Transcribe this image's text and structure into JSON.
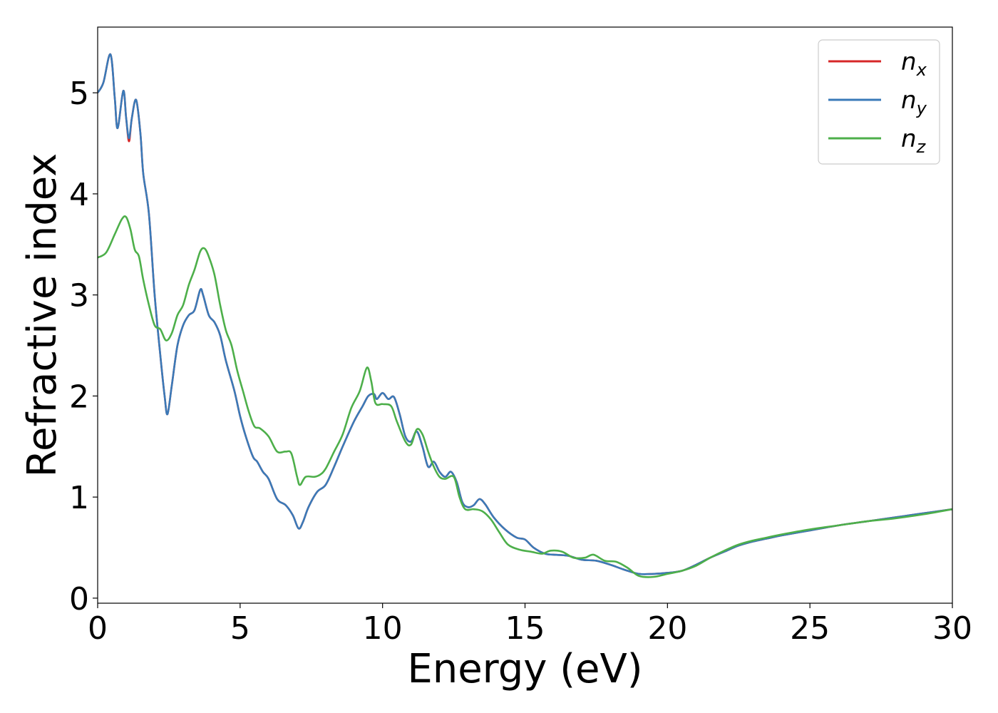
{
  "chart_data": {
    "type": "line",
    "xlabel": "Energy (eV)",
    "ylabel": "Refractive index",
    "xlim": [
      0,
      30
    ],
    "ylim": [
      -0.05,
      5.65
    ],
    "xticks": [
      0,
      5,
      10,
      15,
      20,
      25,
      30
    ],
    "yticks": [
      0,
      1,
      2,
      3,
      4,
      5
    ],
    "grid": false,
    "legend_position": "top-right",
    "series": [
      {
        "name": "n_x",
        "base": "n",
        "sub": "x",
        "color": "#d62728",
        "points": [
          [
            0,
            5.0
          ],
          [
            0.2,
            5.1
          ],
          [
            0.45,
            5.38
          ],
          [
            0.6,
            4.95
          ],
          [
            0.7,
            4.65
          ],
          [
            0.9,
            5.02
          ],
          [
            1.0,
            4.75
          ],
          [
            1.1,
            4.52
          ],
          [
            1.2,
            4.75
          ],
          [
            1.35,
            4.93
          ],
          [
            1.5,
            4.6
          ],
          [
            1.6,
            4.2
          ],
          [
            1.8,
            3.8
          ],
          [
            2.0,
            3.0
          ],
          [
            2.2,
            2.4
          ],
          [
            2.35,
            2.0
          ],
          [
            2.45,
            1.82
          ],
          [
            2.6,
            2.1
          ],
          [
            2.8,
            2.5
          ],
          [
            3.0,
            2.7
          ],
          [
            3.2,
            2.8
          ],
          [
            3.4,
            2.85
          ],
          [
            3.6,
            3.05
          ],
          [
            3.7,
            3.0
          ],
          [
            3.9,
            2.8
          ],
          [
            4.1,
            2.73
          ],
          [
            4.3,
            2.6
          ],
          [
            4.5,
            2.35
          ],
          [
            4.8,
            2.05
          ],
          [
            5.0,
            1.8
          ],
          [
            5.2,
            1.6
          ],
          [
            5.45,
            1.4
          ],
          [
            5.6,
            1.35
          ],
          [
            5.8,
            1.25
          ],
          [
            6.0,
            1.18
          ],
          [
            6.3,
            0.98
          ],
          [
            6.6,
            0.92
          ],
          [
            6.85,
            0.82
          ],
          [
            7.05,
            0.69
          ],
          [
            7.2,
            0.75
          ],
          [
            7.4,
            0.9
          ],
          [
            7.7,
            1.05
          ],
          [
            8.0,
            1.12
          ],
          [
            8.3,
            1.3
          ],
          [
            8.6,
            1.5
          ],
          [
            9.0,
            1.75
          ],
          [
            9.3,
            1.9
          ],
          [
            9.5,
            2.0
          ],
          [
            9.7,
            2.02
          ],
          [
            9.8,
            1.97
          ],
          [
            10.0,
            2.03
          ],
          [
            10.2,
            1.97
          ],
          [
            10.4,
            1.99
          ],
          [
            10.6,
            1.82
          ],
          [
            10.8,
            1.6
          ],
          [
            11.0,
            1.55
          ],
          [
            11.2,
            1.65
          ],
          [
            11.4,
            1.5
          ],
          [
            11.6,
            1.3
          ],
          [
            11.8,
            1.35
          ],
          [
            12.0,
            1.25
          ],
          [
            12.2,
            1.2
          ],
          [
            12.4,
            1.25
          ],
          [
            12.6,
            1.15
          ],
          [
            12.8,
            0.95
          ],
          [
            13.0,
            0.9
          ],
          [
            13.2,
            0.92
          ],
          [
            13.4,
            0.98
          ],
          [
            13.6,
            0.93
          ],
          [
            13.9,
            0.8
          ],
          [
            14.3,
            0.68
          ],
          [
            14.7,
            0.6
          ],
          [
            15.0,
            0.58
          ],
          [
            15.3,
            0.5
          ],
          [
            15.7,
            0.44
          ],
          [
            16.0,
            0.43
          ],
          [
            16.5,
            0.42
          ],
          [
            17.0,
            0.38
          ],
          [
            17.5,
            0.37
          ],
          [
            18.0,
            0.33
          ],
          [
            18.5,
            0.28
          ],
          [
            19.0,
            0.24
          ],
          [
            19.5,
            0.24
          ],
          [
            20.0,
            0.25
          ],
          [
            20.5,
            0.27
          ],
          [
            21.0,
            0.33
          ],
          [
            21.5,
            0.4
          ],
          [
            22.0,
            0.46
          ],
          [
            22.5,
            0.52
          ],
          [
            23.0,
            0.56
          ],
          [
            23.5,
            0.59
          ],
          [
            24.0,
            0.62
          ],
          [
            25.0,
            0.67
          ],
          [
            26.0,
            0.72
          ],
          [
            27.0,
            0.76
          ],
          [
            28.0,
            0.8
          ],
          [
            29.0,
            0.84
          ],
          [
            30.0,
            0.88
          ]
        ]
      },
      {
        "name": "n_y",
        "base": "n",
        "sub": "y",
        "color": "#3a7ab8",
        "points": [
          [
            0,
            5.0
          ],
          [
            0.2,
            5.1
          ],
          [
            0.45,
            5.38
          ],
          [
            0.6,
            4.95
          ],
          [
            0.7,
            4.65
          ],
          [
            0.9,
            5.02
          ],
          [
            1.0,
            4.75
          ],
          [
            1.1,
            4.55
          ],
          [
            1.2,
            4.75
          ],
          [
            1.35,
            4.93
          ],
          [
            1.5,
            4.6
          ],
          [
            1.6,
            4.2
          ],
          [
            1.8,
            3.8
          ],
          [
            2.0,
            3.0
          ],
          [
            2.2,
            2.4
          ],
          [
            2.35,
            2.0
          ],
          [
            2.45,
            1.82
          ],
          [
            2.6,
            2.1
          ],
          [
            2.8,
            2.5
          ],
          [
            3.0,
            2.7
          ],
          [
            3.2,
            2.8
          ],
          [
            3.4,
            2.85
          ],
          [
            3.6,
            3.05
          ],
          [
            3.7,
            3.0
          ],
          [
            3.9,
            2.8
          ],
          [
            4.1,
            2.73
          ],
          [
            4.3,
            2.6
          ],
          [
            4.5,
            2.35
          ],
          [
            4.8,
            2.05
          ],
          [
            5.0,
            1.8
          ],
          [
            5.2,
            1.6
          ],
          [
            5.45,
            1.4
          ],
          [
            5.6,
            1.35
          ],
          [
            5.8,
            1.25
          ],
          [
            6.0,
            1.18
          ],
          [
            6.3,
            0.98
          ],
          [
            6.6,
            0.92
          ],
          [
            6.85,
            0.82
          ],
          [
            7.05,
            0.69
          ],
          [
            7.2,
            0.75
          ],
          [
            7.4,
            0.9
          ],
          [
            7.7,
            1.05
          ],
          [
            8.0,
            1.12
          ],
          [
            8.3,
            1.3
          ],
          [
            8.6,
            1.5
          ],
          [
            9.0,
            1.75
          ],
          [
            9.3,
            1.9
          ],
          [
            9.5,
            2.0
          ],
          [
            9.7,
            2.02
          ],
          [
            9.8,
            1.97
          ],
          [
            10.0,
            2.03
          ],
          [
            10.2,
            1.97
          ],
          [
            10.4,
            1.99
          ],
          [
            10.6,
            1.82
          ],
          [
            10.8,
            1.6
          ],
          [
            11.0,
            1.55
          ],
          [
            11.2,
            1.65
          ],
          [
            11.4,
            1.5
          ],
          [
            11.6,
            1.3
          ],
          [
            11.8,
            1.35
          ],
          [
            12.0,
            1.25
          ],
          [
            12.2,
            1.2
          ],
          [
            12.4,
            1.25
          ],
          [
            12.6,
            1.15
          ],
          [
            12.8,
            0.95
          ],
          [
            13.0,
            0.9
          ],
          [
            13.2,
            0.92
          ],
          [
            13.4,
            0.98
          ],
          [
            13.6,
            0.93
          ],
          [
            13.9,
            0.8
          ],
          [
            14.3,
            0.68
          ],
          [
            14.7,
            0.6
          ],
          [
            15.0,
            0.58
          ],
          [
            15.3,
            0.5
          ],
          [
            15.7,
            0.44
          ],
          [
            16.0,
            0.43
          ],
          [
            16.5,
            0.42
          ],
          [
            17.0,
            0.38
          ],
          [
            17.5,
            0.37
          ],
          [
            18.0,
            0.33
          ],
          [
            18.5,
            0.28
          ],
          [
            19.0,
            0.24
          ],
          [
            19.5,
            0.24
          ],
          [
            20.0,
            0.25
          ],
          [
            20.5,
            0.27
          ],
          [
            21.0,
            0.33
          ],
          [
            21.5,
            0.4
          ],
          [
            22.0,
            0.46
          ],
          [
            22.5,
            0.52
          ],
          [
            23.0,
            0.56
          ],
          [
            23.5,
            0.59
          ],
          [
            24.0,
            0.62
          ],
          [
            25.0,
            0.67
          ],
          [
            26.0,
            0.72
          ],
          [
            27.0,
            0.76
          ],
          [
            28.0,
            0.8
          ],
          [
            29.0,
            0.84
          ],
          [
            30.0,
            0.88
          ]
        ]
      },
      {
        "name": "n_z",
        "base": "n",
        "sub": "z",
        "color": "#4daf4a",
        "points": [
          [
            0,
            3.37
          ],
          [
            0.3,
            3.42
          ],
          [
            0.6,
            3.6
          ],
          [
            0.85,
            3.75
          ],
          [
            1.0,
            3.77
          ],
          [
            1.15,
            3.65
          ],
          [
            1.3,
            3.45
          ],
          [
            1.45,
            3.38
          ],
          [
            1.6,
            3.15
          ],
          [
            1.8,
            2.9
          ],
          [
            2.0,
            2.7
          ],
          [
            2.2,
            2.66
          ],
          [
            2.4,
            2.55
          ],
          [
            2.6,
            2.62
          ],
          [
            2.8,
            2.8
          ],
          [
            3.0,
            2.9
          ],
          [
            3.2,
            3.1
          ],
          [
            3.4,
            3.25
          ],
          [
            3.6,
            3.43
          ],
          [
            3.75,
            3.46
          ],
          [
            3.9,
            3.38
          ],
          [
            4.1,
            3.2
          ],
          [
            4.3,
            2.9
          ],
          [
            4.5,
            2.65
          ],
          [
            4.7,
            2.5
          ],
          [
            4.9,
            2.25
          ],
          [
            5.1,
            2.05
          ],
          [
            5.3,
            1.85
          ],
          [
            5.5,
            1.7
          ],
          [
            5.7,
            1.68
          ],
          [
            6.0,
            1.6
          ],
          [
            6.3,
            1.45
          ],
          [
            6.6,
            1.45
          ],
          [
            6.8,
            1.43
          ],
          [
            7.0,
            1.2
          ],
          [
            7.1,
            1.12
          ],
          [
            7.3,
            1.2
          ],
          [
            7.6,
            1.2
          ],
          [
            7.8,
            1.22
          ],
          [
            8.0,
            1.28
          ],
          [
            8.3,
            1.45
          ],
          [
            8.6,
            1.62
          ],
          [
            8.9,
            1.88
          ],
          [
            9.2,
            2.05
          ],
          [
            9.45,
            2.28
          ],
          [
            9.6,
            2.15
          ],
          [
            9.75,
            1.93
          ],
          [
            10.0,
            1.92
          ],
          [
            10.3,
            1.9
          ],
          [
            10.5,
            1.75
          ],
          [
            10.8,
            1.55
          ],
          [
            11.0,
            1.52
          ],
          [
            11.2,
            1.67
          ],
          [
            11.4,
            1.62
          ],
          [
            11.6,
            1.45
          ],
          [
            11.8,
            1.3
          ],
          [
            12.0,
            1.2
          ],
          [
            12.2,
            1.18
          ],
          [
            12.5,
            1.2
          ],
          [
            12.7,
            1.0
          ],
          [
            12.9,
            0.88
          ],
          [
            13.2,
            0.88
          ],
          [
            13.5,
            0.86
          ],
          [
            13.8,
            0.78
          ],
          [
            14.1,
            0.65
          ],
          [
            14.4,
            0.53
          ],
          [
            14.8,
            0.48
          ],
          [
            15.2,
            0.46
          ],
          [
            15.6,
            0.44
          ],
          [
            15.9,
            0.47
          ],
          [
            16.3,
            0.46
          ],
          [
            16.7,
            0.4
          ],
          [
            17.1,
            0.4
          ],
          [
            17.4,
            0.43
          ],
          [
            17.8,
            0.37
          ],
          [
            18.2,
            0.36
          ],
          [
            18.6,
            0.3
          ],
          [
            19.0,
            0.22
          ],
          [
            19.5,
            0.21
          ],
          [
            20.0,
            0.24
          ],
          [
            20.5,
            0.27
          ],
          [
            21.0,
            0.32
          ],
          [
            21.5,
            0.4
          ],
          [
            22.0,
            0.47
          ],
          [
            22.5,
            0.53
          ],
          [
            23.0,
            0.57
          ],
          [
            23.5,
            0.6
          ],
          [
            24.0,
            0.63
          ],
          [
            25.0,
            0.68
          ],
          [
            26.0,
            0.72
          ],
          [
            27.0,
            0.76
          ],
          [
            28.0,
            0.79
          ],
          [
            29.0,
            0.83
          ],
          [
            30.0,
            0.88
          ]
        ]
      }
    ]
  }
}
